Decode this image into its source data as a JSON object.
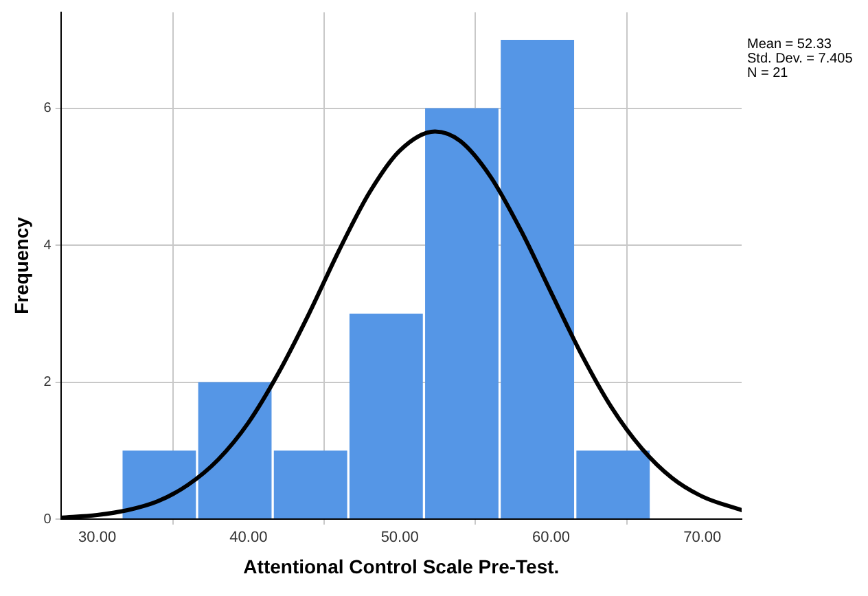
{
  "chart_data": {
    "type": "histogram",
    "xlabel": "Attentional Control Scale Pre-Test.",
    "ylabel": "Frequency",
    "bins": [
      31.6,
      36.6,
      41.6,
      46.6,
      51.6,
      56.6,
      61.6,
      66.6
    ],
    "values": [
      1,
      2,
      1,
      3,
      6,
      7,
      1
    ],
    "color": "#5596e6",
    "series": [
      {
        "type": "line",
        "color": "#000000",
        "x": [
          27.6,
          30,
          32,
          34,
          36,
          38,
          40,
          42,
          44,
          46,
          48,
          50,
          52.33,
          54,
          56,
          58,
          60,
          62,
          64,
          66,
          68,
          70,
          72.6
        ],
        "values": [
          0.02,
          0.06,
          0.13,
          0.26,
          0.5,
          0.87,
          1.41,
          2.14,
          3.0,
          3.93,
          4.77,
          5.38,
          5.66,
          5.52,
          5.0,
          4.22,
          3.31,
          2.41,
          1.63,
          1.03,
          0.6,
          0.33,
          0.13
        ]
      }
    ],
    "xlim": [
      27.6,
      72.6
    ],
    "xticks": [
      {
        "value": 30,
        "label": "30.00"
      },
      {
        "value": 40,
        "label": "40.00"
      },
      {
        "value": 50,
        "label": "50.00"
      },
      {
        "value": 60,
        "label": "60.00"
      },
      {
        "value": 70,
        "label": "70.00"
      }
    ],
    "ylim": [
      0,
      7.4
    ],
    "yticks": [
      0,
      2,
      4,
      6
    ],
    "grid": true,
    "legend": false,
    "marker": "none",
    "line_style": "solid",
    "annotations": [
      "Mean = 52.33",
      "Std. Dev. = 7.405",
      "N = 21"
    ]
  }
}
